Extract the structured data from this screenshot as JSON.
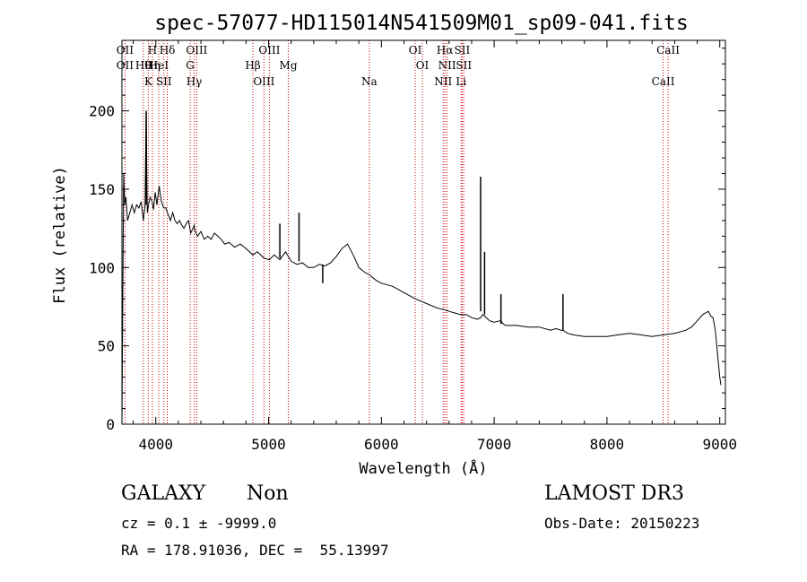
{
  "chart_data": {
    "type": "line",
    "title": "spec-57077-HD115014N541509M01_sp09-041.fits",
    "xlabel": "Wavelength (Å)",
    "ylabel": "Flux (relative)",
    "xlim": [
      3700,
      9050
    ],
    "ylim": [
      0,
      245
    ],
    "xticks": [
      4000,
      5000,
      6000,
      7000,
      8000,
      9000
    ],
    "yticks": [
      0,
      50,
      100,
      150,
      200
    ],
    "series": [
      {
        "name": "flux",
        "x": [
          3700,
          3715,
          3725,
          3735,
          3750,
          3770,
          3790,
          3810,
          3830,
          3850,
          3870,
          3890,
          3905,
          3915,
          3925,
          3935,
          3950,
          3968,
          3980,
          3995,
          4010,
          4030,
          4050,
          4070,
          4090,
          4102,
          4115,
          4130,
          4150,
          4170,
          4190,
          4210,
          4230,
          4250,
          4270,
          4290,
          4310,
          4330,
          4340,
          4350,
          4370,
          4400,
          4430,
          4460,
          4490,
          4520,
          4550,
          4580,
          4610,
          4650,
          4700,
          4750,
          4800,
          4861,
          4900,
          4959,
          5007,
          5050,
          5100,
          5150,
          5200,
          5250,
          5300,
          5350,
          5400,
          5450,
          5500,
          5550,
          5600,
          5650,
          5700,
          5750,
          5800,
          5850,
          5900,
          5950,
          6000,
          6100,
          6200,
          6300,
          6400,
          6500,
          6563,
          6600,
          6650,
          6700,
          6750,
          6800,
          6850,
          6880,
          6900,
          6930,
          6960,
          7000,
          7050,
          7060,
          7080,
          7100,
          7200,
          7300,
          7400,
          7500,
          7550,
          7590,
          7610,
          7650,
          7700,
          7800,
          7900,
          8000,
          8100,
          8200,
          8300,
          8400,
          8500,
          8600,
          8700,
          8750,
          8800,
          8850,
          8900,
          8920,
          8940,
          8960,
          8980,
          9000,
          9010
        ],
        "values": [
          0,
          160,
          140,
          145,
          130,
          135,
          140,
          135,
          140,
          138,
          142,
          130,
          140,
          200,
          135,
          140,
          145,
          142,
          137,
          148,
          140,
          152,
          142,
          138,
          138,
          135,
          133,
          130,
          135,
          130,
          128,
          130,
          127,
          125,
          128,
          130,
          122,
          125,
          127,
          123,
          120,
          123,
          118,
          120,
          118,
          122,
          120,
          118,
          115,
          116,
          113,
          115,
          112,
          108,
          110,
          106,
          105,
          108,
          105,
          110,
          104,
          102,
          103,
          100,
          100,
          102,
          101,
          103,
          107,
          112,
          115,
          108,
          100,
          97,
          95,
          92,
          90,
          88,
          84,
          80,
          77,
          74,
          73,
          72,
          71,
          70,
          70,
          68,
          67,
          68,
          70,
          68,
          66,
          65,
          66,
          66,
          64,
          63,
          63,
          62,
          62,
          60,
          61,
          60,
          60,
          58,
          57,
          56,
          56,
          56,
          57,
          58,
          57,
          56,
          57,
          58,
          60,
          62,
          66,
          70,
          72,
          69,
          68,
          60,
          45,
          30,
          25
        ]
      }
    ],
    "emission_spikes": [
      {
        "x": 3915,
        "base": 140,
        "peak": 200
      },
      {
        "x": 5100,
        "base": 106,
        "peak": 128
      },
      {
        "x": 5270,
        "base": 104,
        "peak": 135
      },
      {
        "x": 6880,
        "base": 72,
        "peak": 158
      },
      {
        "x": 6915,
        "base": 70,
        "peak": 110
      },
      {
        "x": 7060,
        "base": 64,
        "peak": 83
      },
      {
        "x": 7610,
        "base": 60,
        "peak": 83
      }
    ],
    "absorption_dips": [
      {
        "x": 5480,
        "base": 102,
        "bottom": 90
      }
    ],
    "lines": [
      {
        "x": 3727,
        "labels": [
          "OII",
          "OII"
        ]
      },
      {
        "x": 3889,
        "labels": [
          "Hθ"
        ]
      },
      {
        "x": 3934,
        "labels": [
          "K"
        ]
      },
      {
        "x": 3970,
        "labels": [
          "H",
          "Hη"
        ]
      },
      {
        "x": 4026,
        "labels": [
          "HeI"
        ]
      },
      {
        "x": 4072,
        "labels": [
          "SII"
        ]
      },
      {
        "x": 4102,
        "labels": [
          "Hδ"
        ]
      },
      {
        "x": 4305,
        "labels": [
          "G"
        ]
      },
      {
        "x": 4340,
        "labels": [
          "Hγ"
        ]
      },
      {
        "x": 4363,
        "labels": [
          "OIII"
        ]
      },
      {
        "x": 4861,
        "labels": [
          "Hβ"
        ]
      },
      {
        "x": 4959,
        "labels": [
          "OIII"
        ]
      },
      {
        "x": 5007,
        "labels": [
          "OIII"
        ]
      },
      {
        "x": 5175,
        "labels": [
          "Mg"
        ]
      },
      {
        "x": 5893,
        "labels": [
          "Na"
        ]
      },
      {
        "x": 6300,
        "labels": [
          "OI"
        ]
      },
      {
        "x": 6363,
        "labels": [
          "OI"
        ]
      },
      {
        "x": 6548,
        "labels": [
          "NII"
        ]
      },
      {
        "x": 6563,
        "labels": [
          "Hα"
        ]
      },
      {
        "x": 6583,
        "labels": [
          "NII"
        ]
      },
      {
        "x": 6707,
        "labels": [
          "Li"
        ]
      },
      {
        "x": 6716,
        "labels": [
          "SII"
        ]
      },
      {
        "x": 6731,
        "labels": [
          "SII"
        ]
      },
      {
        "x": 8498,
        "labels": [
          "CaII"
        ]
      },
      {
        "x": 8542,
        "labels": [
          "CaII"
        ]
      }
    ],
    "line_color": "#cc0000",
    "series_color": "#000000"
  },
  "info": {
    "class_label": "GALAXY",
    "subclass_label": "Non",
    "survey": "LAMOST DR3",
    "cz_text": "cz = 0.1 ± -9999.0",
    "obs_date_text": "Obs-Date: 20150223",
    "radec_text": "RA = 178.91036, DEC =  55.13997"
  }
}
